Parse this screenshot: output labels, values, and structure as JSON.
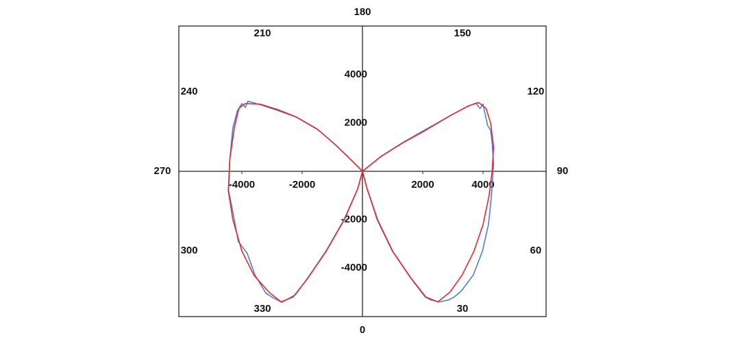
{
  "chart_data": {
    "type": "line",
    "xlim": [
      -6090,
      6090
    ],
    "ylim": [
      -6010,
      6010
    ],
    "xticks": [
      -4000,
      -2000,
      2000,
      4000
    ],
    "yticks": [
      -4000,
      -2000,
      2000,
      4000
    ],
    "grid": false,
    "angle_labels": [
      0,
      30,
      60,
      90,
      120,
      150,
      180,
      210,
      240,
      270,
      300,
      330
    ],
    "series": [
      {
        "color": "#4a7fe0",
        "x": [
          0,
          620,
          1320,
          2080,
          2880,
          3480,
          3760,
          3900,
          4000,
          4080,
          4150,
          4250,
          4300,
          4350,
          4280,
          4180,
          3980,
          3680,
          3280,
          3040,
          2860,
          2560,
          2280,
          2080,
          1580,
          980,
          480,
          140,
          0,
          -160,
          -620,
          -1220,
          -1820,
          -2220,
          -2500,
          -2680,
          -3000,
          -3200,
          -3560,
          -3820,
          -4120,
          -4280,
          -4440,
          -4400,
          -4300,
          -4150,
          -4000,
          -3880,
          -3800,
          -3400,
          -2820,
          -2180,
          -1480,
          -880,
          -380,
          0
        ],
        "y": [
          0,
          620,
          1180,
          1720,
          2280,
          2680,
          2820,
          2600,
          2780,
          2300,
          1900,
          1700,
          1200,
          300,
          -1000,
          -2200,
          -3300,
          -4280,
          -4950,
          -5200,
          -5320,
          -5400,
          -5330,
          -5200,
          -4380,
          -3280,
          -1980,
          -680,
          0,
          -720,
          -2020,
          -3320,
          -4420,
          -5100,
          -5300,
          -5420,
          -5200,
          -5050,
          -4300,
          -3400,
          -2900,
          -1800,
          -800,
          500,
          1800,
          2500,
          2800,
          2650,
          2900,
          2760,
          2520,
          2230,
          1720,
          1080,
          480,
          0
        ]
      },
      {
        "color": "#e8282d",
        "x": [
          0,
          600,
          1300,
          2100,
          2900,
          3500,
          3850,
          4100,
          4250,
          4350,
          4300,
          4200,
          4000,
          3700,
          3300,
          2900,
          2500,
          2100,
          1600,
          1000,
          500,
          150,
          0,
          -150,
          -600,
          -1200,
          -1800,
          -2300,
          -2700,
          -3100,
          -3600,
          -4000,
          -4300,
          -4450,
          -4400,
          -4250,
          -4100,
          -3900,
          -3400,
          -2800,
          -2200,
          -1500,
          -900,
          -400,
          0
        ],
        "y": [
          0,
          600,
          1150,
          1700,
          2300,
          2700,
          2850,
          2600,
          2000,
          1000,
          0,
          -1000,
          -2200,
          -3300,
          -4300,
          -5000,
          -5400,
          -5200,
          -4400,
          -3300,
          -2000,
          -700,
          0,
          -700,
          -2000,
          -3300,
          -4400,
          -5200,
          -5400,
          -5000,
          -4300,
          -3300,
          -2000,
          -800,
          500,
          1800,
          2600,
          2800,
          2780,
          2550,
          2250,
          1750,
          1100,
          500,
          0
        ]
      }
    ]
  }
}
